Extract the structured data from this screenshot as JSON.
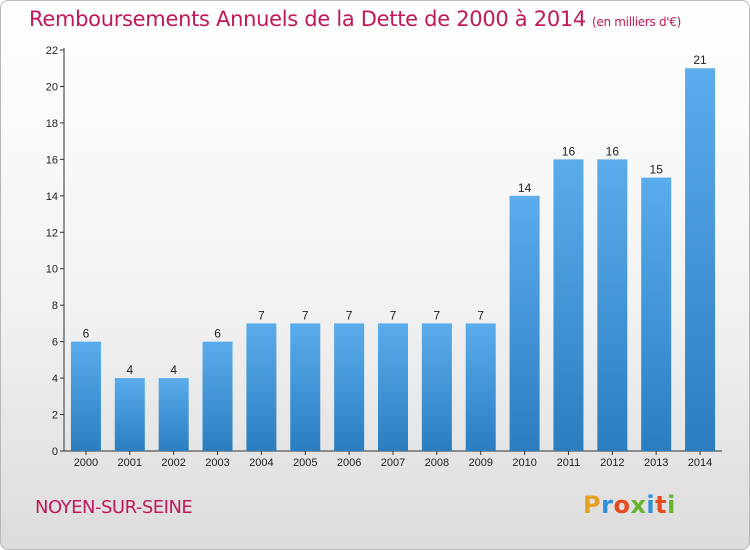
{
  "header": {
    "title": "Remboursements Annuels de la Dette de 2000 à 2014",
    "unit": "(en milliers d'€)"
  },
  "footer": {
    "place": "NOYEN-SUR-SEINE",
    "brand": {
      "text": "Proxiti",
      "letter_colors": [
        "#e8a020",
        "#2f8fd8",
        "#e84a1e",
        "#6ab42d",
        "#2f8fd8",
        "#e84a1e",
        "#6ab42d"
      ]
    }
  },
  "chart_data": {
    "type": "bar",
    "title": "Remboursements Annuels de la Dette de 2000 à 2014",
    "xlabel": "",
    "ylabel": "",
    "categories": [
      "2000",
      "2001",
      "2002",
      "2003",
      "2004",
      "2005",
      "2006",
      "2007",
      "2008",
      "2009",
      "2010",
      "2011",
      "2012",
      "2013",
      "2014"
    ],
    "values": [
      6,
      4,
      4,
      6,
      7,
      7,
      7,
      7,
      7,
      7,
      14,
      16,
      16,
      15,
      21
    ],
    "ylim": [
      0,
      22
    ],
    "yticks": [
      0,
      2,
      4,
      6,
      8,
      10,
      12,
      14,
      16,
      18,
      20,
      22
    ],
    "grid": false,
    "colors": {
      "bar_top": "#5aacec",
      "bar_bottom": "#2a7ec0",
      "axis": "#333333",
      "title": "#c2185b"
    }
  }
}
